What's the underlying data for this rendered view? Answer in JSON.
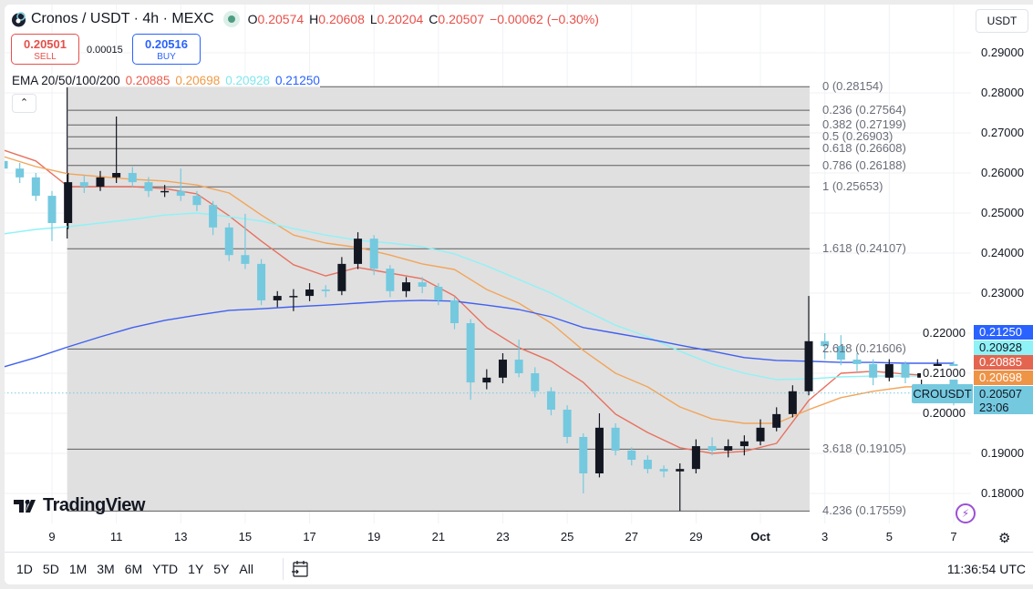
{
  "header": {
    "title": "Cronos / USDT · 4h · MEXC",
    "ohlc": {
      "o_label": "O",
      "o": "0.20574",
      "h_label": "H",
      "h": "0.20608",
      "l_label": "L",
      "l": "0.20204",
      "c_label": "C",
      "c": "0.20507",
      "change": "−0.00062 (−0.30%)"
    },
    "market_status": "open"
  },
  "trade": {
    "sell_price": "0.20501",
    "sell_label": "SELL",
    "spread": "0.00015",
    "buy_price": "0.20516",
    "buy_label": "BUY"
  },
  "ema_legend": {
    "label": "EMA 20/50/100/200",
    "v20": "0.20885",
    "v50": "0.20698",
    "v100": "0.20928",
    "v200": "0.21250"
  },
  "currency_selector": "USDT",
  "symbol_tag": "CROUSDT",
  "last_price": {
    "price": "0.20507",
    "countdown": "23:06"
  },
  "ema_tags": [
    {
      "text": "0.21250",
      "bg": "#2962ff",
      "fg": "#ffffff"
    },
    {
      "text": "0.20928",
      "bg": "#8ef2f7",
      "fg": "#131722"
    },
    {
      "text": "0.20885",
      "bg": "#e3654f",
      "fg": "#ffffff"
    },
    {
      "text": "0.20698",
      "bg": "#ee9447",
      "fg": "#ffffff"
    }
  ],
  "colors": {
    "up": "#131722",
    "down": "#74c9df",
    "ema20": "#e8705e",
    "ema50": "#f2a55a",
    "ema100": "#8ef2f7",
    "ema200": "#4060f0",
    "fib_fill": "#e0e0e0",
    "fib_line": "#5d5d5d",
    "last_price": "#74c9df"
  },
  "bottom_bar": {
    "ranges": [
      "1D",
      "5D",
      "1M",
      "3M",
      "6M",
      "YTD",
      "1Y",
      "5Y",
      "All"
    ],
    "clock": "11:36:54 UTC"
  },
  "logo_text": "TradingView",
  "chart_data": {
    "type": "candlestick",
    "symbol": "Cronos / USDT",
    "y_ticks": [
      "0.29000",
      "0.28000",
      "0.27000",
      "0.26000",
      "0.25000",
      "0.24000",
      "0.23000",
      "0.22000",
      "0.21000",
      "0.20000",
      "0.19000",
      "0.18000"
    ],
    "ylim": [
      0.1735,
      0.3021
    ],
    "x_ticks": [
      "9",
      "11",
      "13",
      "15",
      "17",
      "19",
      "21",
      "23",
      "25",
      "27",
      "29",
      "Oct",
      "3",
      "5",
      "7"
    ],
    "grid": true,
    "candles_columns": [
      "time",
      "open",
      "high",
      "low",
      "close"
    ],
    "candles": [
      [
        "09-07 12:00",
        0.263,
        0.2645,
        0.26,
        0.2611
      ],
      [
        "09-08 00:00",
        0.2611,
        0.2625,
        0.2575,
        0.2589
      ],
      [
        "09-08 12:00",
        0.2589,
        0.26,
        0.253,
        0.2543
      ],
      [
        "09-09 00:00",
        0.2543,
        0.2555,
        0.243,
        0.2475
      ],
      [
        "09-09 12:00",
        0.2475,
        0.26,
        0.246,
        0.2577
      ],
      [
        "09-10 00:00",
        0.2577,
        0.2595,
        0.255,
        0.2566
      ],
      [
        "09-10 12:00",
        0.2566,
        0.2605,
        0.2555,
        0.2589
      ],
      [
        "09-11 00:00",
        0.2589,
        0.2741,
        0.2575,
        0.26
      ],
      [
        "09-11 12:00",
        0.26,
        0.2615,
        0.2565,
        0.2577
      ],
      [
        "09-12 00:00",
        0.2577,
        0.259,
        0.254,
        0.2555
      ],
      [
        "09-12 12:00",
        0.2555,
        0.257,
        0.254,
        0.2555
      ],
      [
        "09-13 00:00",
        0.2555,
        0.2611,
        0.253,
        0.2543
      ],
      [
        "09-13 12:00",
        0.2543,
        0.2555,
        0.2505,
        0.252
      ],
      [
        "09-14 00:00",
        0.252,
        0.253,
        0.2445,
        0.2464
      ],
      [
        "09-14 12:00",
        0.2464,
        0.2475,
        0.238,
        0.2395
      ],
      [
        "09-15 00:00",
        0.2395,
        0.2498,
        0.236,
        0.2373
      ],
      [
        "09-15 12:00",
        0.2373,
        0.2385,
        0.227,
        0.2282
      ],
      [
        "09-16 00:00",
        0.2282,
        0.2305,
        0.2265,
        0.2293
      ],
      [
        "09-16 12:00",
        0.2293,
        0.231,
        0.2255,
        0.2293
      ],
      [
        "09-17 00:00",
        0.2293,
        0.2325,
        0.228,
        0.2309
      ],
      [
        "09-17 12:00",
        0.2309,
        0.232,
        0.229,
        0.2305
      ],
      [
        "09-18 00:00",
        0.2305,
        0.239,
        0.2295,
        0.2373
      ],
      [
        "09-18 12:00",
        0.2373,
        0.2452,
        0.236,
        0.2436
      ],
      [
        "09-19 00:00",
        0.2436,
        0.2445,
        0.2345,
        0.2361
      ],
      [
        "09-19 12:00",
        0.2361,
        0.237,
        0.229,
        0.2305
      ],
      [
        "09-20 00:00",
        0.2305,
        0.234,
        0.229,
        0.2327
      ],
      [
        "09-20 12:00",
        0.2327,
        0.234,
        0.23,
        0.2316
      ],
      [
        "09-21 00:00",
        0.2316,
        0.2325,
        0.227,
        0.2282
      ],
      [
        "09-21 12:00",
        0.2282,
        0.229,
        0.221,
        0.2225
      ],
      [
        "09-22 00:00",
        0.2225,
        0.2235,
        0.2034,
        0.2077
      ],
      [
        "09-22 12:00",
        0.2077,
        0.211,
        0.206,
        0.2089
      ],
      [
        "09-23 00:00",
        0.2089,
        0.215,
        0.2075,
        0.2134
      ],
      [
        "09-23 12:00",
        0.2134,
        0.2184,
        0.209,
        0.21
      ],
      [
        "09-24 00:00",
        0.21,
        0.2115,
        0.204,
        0.2055
      ],
      [
        "09-24 12:00",
        0.2055,
        0.2065,
        0.1995,
        0.2009
      ],
      [
        "09-25 00:00",
        0.2009,
        0.202,
        0.1925,
        0.1941
      ],
      [
        "09-25 12:00",
        0.1941,
        0.195,
        0.18,
        0.185
      ],
      [
        "09-26 00:00",
        0.185,
        0.2,
        0.184,
        0.1964
      ],
      [
        "09-26 12:00",
        0.1964,
        0.1975,
        0.1895,
        0.1907
      ],
      [
        "09-27 00:00",
        0.1907,
        0.1915,
        0.187,
        0.1884
      ],
      [
        "09-27 12:00",
        0.1884,
        0.1895,
        0.185,
        0.1861
      ],
      [
        "09-28 00:00",
        0.1861,
        0.187,
        0.184,
        0.1855
      ],
      [
        "09-28 12:00",
        0.1855,
        0.1875,
        0.1756,
        0.1861
      ],
      [
        "09-29 00:00",
        0.1861,
        0.1935,
        0.185,
        0.1918
      ],
      [
        "09-29 12:00",
        0.1918,
        0.194,
        0.1895,
        0.1907
      ],
      [
        "09-30 00:00",
        0.1907,
        0.1935,
        0.189,
        0.1918
      ],
      [
        "09-30 12:00",
        0.1918,
        0.1945,
        0.1895,
        0.193
      ],
      [
        "10-01 00:00",
        0.193,
        0.1985,
        0.192,
        0.1964
      ],
      [
        "10-01 12:00",
        0.1964,
        0.2015,
        0.1955,
        0.1998
      ],
      [
        "10-02 00:00",
        0.1998,
        0.207,
        0.199,
        0.2055
      ],
      [
        "10-02 12:00",
        0.2055,
        0.2293,
        0.2045,
        0.218
      ],
      [
        "10-03 00:00",
        0.218,
        0.22,
        0.2135,
        0.2168
      ],
      [
        "10-03 12:00",
        0.2168,
        0.2195,
        0.212,
        0.2134
      ],
      [
        "10-04 00:00",
        0.2134,
        0.215,
        0.2105,
        0.2123
      ],
      [
        "10-04 12:00",
        0.2123,
        0.2135,
        0.207,
        0.2089
      ],
      [
        "10-05 00:00",
        0.2089,
        0.2135,
        0.208,
        0.2123
      ],
      [
        "10-05 12:00",
        0.2123,
        0.213,
        0.2075,
        0.2089
      ],
      [
        "10-06 00:00",
        0.2089,
        0.211,
        0.207,
        0.21
      ],
      [
        "10-06 12:00",
        0.21,
        0.2135,
        0.209,
        0.2123
      ],
      [
        "10-07 00:00",
        0.2123,
        0.213,
        0.202,
        0.20507
      ]
    ],
    "ema_times": [
      "09-07 12:00",
      "09-08 12:00",
      "09-09 12:00",
      "09-10 12:00",
      "09-11 12:00",
      "09-12 12:00",
      "09-13 12:00",
      "09-14 12:00",
      "09-15 12:00",
      "09-16 12:00",
      "09-17 12:00",
      "09-18 12:00",
      "09-19 12:00",
      "09-20 12:00",
      "09-21 12:00",
      "09-22 12:00",
      "09-23 12:00",
      "09-24 12:00",
      "09-25 12:00",
      "09-26 12:00",
      "09-27 12:00",
      "09-28 12:00",
      "09-29 12:00",
      "09-30 12:00",
      "10-01 12:00",
      "10-02 12:00",
      "10-03 12:00",
      "10-04 12:00",
      "10-05 12:00",
      "10-06 12:00",
      "10-07 00:00"
    ],
    "series": [
      {
        "name": "EMA 20",
        "key": "ema20",
        "values": [
          0.2657,
          0.263,
          0.2566,
          0.2566,
          0.2566,
          0.2561,
          0.2548,
          0.2493,
          0.243,
          0.2371,
          0.2343,
          0.2364,
          0.235,
          0.2336,
          0.2293,
          0.2214,
          0.2164,
          0.213,
          0.2077,
          0.1998,
          0.1952,
          0.1914,
          0.19,
          0.1905,
          0.1925,
          0.2032,
          0.21,
          0.2105,
          0.2098,
          0.2093,
          0.20885
        ]
      },
      {
        "name": "EMA 50",
        "key": "ema50",
        "values": [
          0.2641,
          0.2616,
          0.2598,
          0.2591,
          0.2584,
          0.258,
          0.257,
          0.255,
          0.2495,
          0.2445,
          0.2425,
          0.2414,
          0.2395,
          0.2373,
          0.2359,
          0.2309,
          0.2275,
          0.2225,
          0.2157,
          0.21,
          0.2066,
          0.2016,
          0.1986,
          0.1975,
          0.1975,
          0.2009,
          0.2039,
          0.2055,
          0.2066,
          0.2068,
          0.20698
        ]
      },
      {
        "name": "EMA 100",
        "key": "ema100",
        "values": [
          0.2448,
          0.2459,
          0.2466,
          0.2475,
          0.2484,
          0.2495,
          0.25,
          0.2491,
          0.248,
          0.2461,
          0.2445,
          0.2432,
          0.2425,
          0.2416,
          0.2398,
          0.2368,
          0.2334,
          0.23,
          0.2259,
          0.222,
          0.2191,
          0.2155,
          0.2123,
          0.21,
          0.2084,
          0.2086,
          0.2091,
          0.2093,
          0.2093,
          0.2093,
          0.20928
        ]
      },
      {
        "name": "EMA 200",
        "key": "ema200",
        "values": [
          0.2116,
          0.2139,
          0.2166,
          0.2191,
          0.2214,
          0.2232,
          0.2245,
          0.2257,
          0.2261,
          0.2266,
          0.227,
          0.2275,
          0.228,
          0.2282,
          0.228,
          0.227,
          0.2259,
          0.2241,
          0.2214,
          0.22,
          0.2186,
          0.217,
          0.2155,
          0.2139,
          0.2132,
          0.213,
          0.2127,
          0.2127,
          0.2125,
          0.2125,
          0.2125
        ]
      }
    ],
    "fib_retracement": {
      "start_time": "09-09 12:00",
      "end_time": "10-02 12:00",
      "levels": [
        {
          "ratio": "0",
          "price": 0.28154,
          "label": "0 (0.28154)"
        },
        {
          "ratio": "0.236",
          "price": 0.27564,
          "label": "0.236 (0.27564)"
        },
        {
          "ratio": "0.382",
          "price": 0.27199,
          "label": "0.382 (0.27199)"
        },
        {
          "ratio": "0.5",
          "price": 0.26903,
          "label": "0.5 (0.26903)"
        },
        {
          "ratio": "0.618",
          "price": 0.26608,
          "label": "0.618 (0.26608)"
        },
        {
          "ratio": "0.786",
          "price": 0.26188,
          "label": "0.786 (0.26188)"
        },
        {
          "ratio": "1",
          "price": 0.25653,
          "label": "1 (0.25653)"
        },
        {
          "ratio": "1.618",
          "price": 0.24107,
          "label": "1.618 (0.24107)"
        },
        {
          "ratio": "2.618",
          "price": 0.21606,
          "label": "2.618 (0.21606)"
        },
        {
          "ratio": "3.618",
          "price": 0.19105,
          "label": "3.618 (0.19105)"
        },
        {
          "ratio": "4.236",
          "price": 0.17559,
          "label": "4.236 (0.17559)"
        }
      ]
    },
    "last_price_line": 0.20507
  }
}
